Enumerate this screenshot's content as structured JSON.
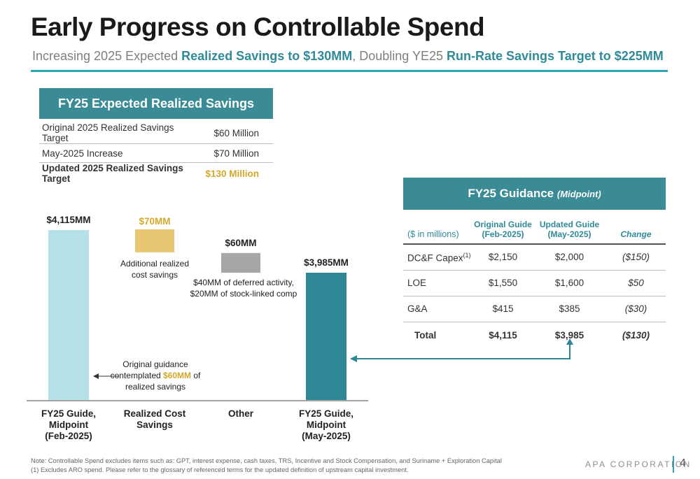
{
  "title": "Early Progress on Controllable Spend",
  "subtitle": {
    "part1": "Increasing 2025 Expected ",
    "hl1": "Realized Savings to $130MM",
    "part2": ", Doubling YE25 ",
    "hl2": "Run-Rate Savings Target to $225MM"
  },
  "savings_table": {
    "header": "FY25 Expected Realized Savings Target",
    "rows": [
      {
        "label": "Original 2025 Realized Savings Target",
        "value": "$60 Million"
      },
      {
        "label": "May-2025 Increase",
        "value": "$70 Million"
      },
      {
        "label": "Updated 2025 Realized Savings Target",
        "value": "$130 Million"
      }
    ]
  },
  "guidance_table": {
    "header": "FY25 Guidance ",
    "header_sub": "(Midpoint)",
    "unit": "($ in millions)",
    "col_original": [
      "Original Guide",
      "(Feb-2025)"
    ],
    "col_updated": [
      "Updated Guide",
      "(May-2025)"
    ],
    "col_change": "Change",
    "rows": [
      {
        "label": "DC&F Capex",
        "footnote": "(1)",
        "original": "$2,150",
        "updated": "$2,000",
        "change": "($150)"
      },
      {
        "label": "LOE",
        "footnote": "",
        "original": "$1,550",
        "updated": "$1,600",
        "change": "$50"
      },
      {
        "label": "G&A",
        "footnote": "",
        "original": "$415",
        "updated": "$385",
        "change": "($30)"
      }
    ],
    "total": {
      "label": "Total",
      "original": "$4,115",
      "updated": "$3,985",
      "change": "($130)"
    }
  },
  "chart_data": {
    "type": "bar",
    "categories": [
      "FY25 Guide, Midpoint (Feb-2025)",
      "Realized Cost Savings",
      "Other",
      "FY25 Guide, Midpoint (May-2025)"
    ],
    "category_lines": [
      [
        "FY25 Guide,",
        "Midpoint",
        "(Feb-2025)"
      ],
      [
        "Realized Cost",
        "Savings"
      ],
      [
        "Other"
      ],
      [
        "FY25 Guide,",
        "Midpoint",
        "(May-2025)"
      ]
    ],
    "values": [
      4115,
      -70,
      -60,
      3985
    ],
    "value_labels": [
      "$4,115MM",
      "$70MM",
      "$60MM",
      "$3,985MM"
    ],
    "colors": [
      "#b7e1e8",
      "#e8c774",
      "#a6a6a6",
      "#2e8794"
    ],
    "label_colors": [
      "#222222",
      "#d4a82a",
      "#222222",
      "#222222"
    ],
    "annotations": {
      "realized": [
        "Additional realized",
        "cost savings"
      ],
      "other": [
        "$40MM of deferred activity,",
        "$20MM of stock-linked comp"
      ],
      "guidance_line1": "Original guidance",
      "guidance_line2_pre": "contemplated ",
      "guidance_line2_hl": "$60MM",
      "guidance_line2_post": " of",
      "guidance_line3": "realized savings"
    }
  },
  "colors": {
    "accent": "#34a3b4",
    "header_bg": "#3a8b96",
    "gold": "#d4a82a"
  },
  "footnotes": [
    "Note: Controllable Spend excludes items such as: GPT, interest expense, cash taxes, TRS, Incentive and Stock Compensation, and Suriname + Exploration Capital",
    "(1) Excludes ARO spend. Please refer to the glossary of referenced terms for the updated definition of upstream capital investment."
  ],
  "brand": "APA CORPORATION",
  "page_number": "4"
}
